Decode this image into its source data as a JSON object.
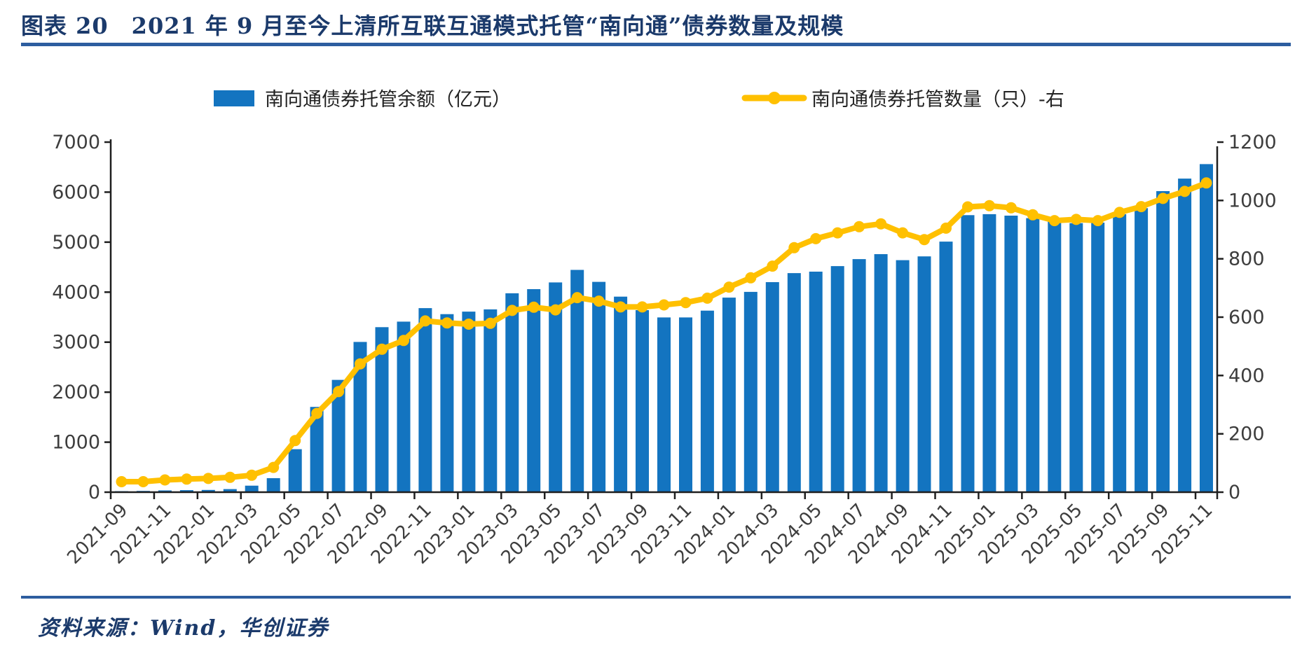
{
  "header": {
    "title": "图表 20　2021 年 9 月至今上清所互联互通模式托管“南向通”债券数量及规模"
  },
  "footer": {
    "source": "资料来源：Wind，华创证券"
  },
  "colors": {
    "bar_blue": "#1374C0",
    "line_yellow": "#FFC000",
    "title_navy": "#1b3a6b",
    "rule_navy": "#2d5d9f",
    "axis_line": "#1f1f1f",
    "axis_text": "#3d3d3d"
  },
  "chart_data": {
    "type": "bar",
    "subtype": "bar-line-combo-dual-axis",
    "title": "",
    "xlabel": "",
    "ylabel_left": "亿元",
    "ylabel_right": "只",
    "grid": false,
    "legend_position": "top",
    "label_every": 2,
    "left_axis": {
      "min": 0,
      "max": 7000,
      "step": 1000
    },
    "right_axis": {
      "min": 0,
      "max": 1200,
      "step": 200
    },
    "categories": [
      "2021-09",
      "2021-10",
      "2021-11",
      "2021-12",
      "2022-01",
      "2022-02",
      "2022-03",
      "2022-04",
      "2022-05",
      "2022-06",
      "2022-07",
      "2022-08",
      "2022-09",
      "2022-10",
      "2022-11",
      "2022-12",
      "2023-01",
      "2023-02",
      "2023-03",
      "2023-04",
      "2023-05",
      "2023-06",
      "2023-07",
      "2023-08",
      "2023-09",
      "2023-10",
      "2023-11",
      "2023-12",
      "2024-01",
      "2024-02",
      "2024-03",
      "2024-04",
      "2024-05",
      "2024-06",
      "2024-07",
      "2024-08",
      "2024-09",
      "2024-10",
      "2024-11",
      "2024-12",
      "2025-01",
      "2025-02",
      "2025-03",
      "2025-04",
      "2025-05",
      "2025-06",
      "2025-07",
      "2025-08",
      "2025-09",
      "2025-10",
      "2025-11"
    ],
    "series": [
      {
        "name": "南向通债券托管余额（亿元）",
        "type": "bar",
        "axis": "left",
        "color": "#1374C0",
        "values": [
          20,
          25,
          35,
          40,
          45,
          62,
          130,
          280,
          860,
          1705,
          2245,
          3005,
          3300,
          3410,
          3680,
          3560,
          3610,
          3655,
          3978,
          4060,
          4195,
          4445,
          4205,
          3910,
          3640,
          3495,
          3495,
          3630,
          3890,
          4005,
          4200,
          4380,
          4410,
          4520,
          4660,
          4760,
          4640,
          4715,
          5010,
          5540,
          5560,
          5530,
          5480,
          5410,
          5380,
          5390,
          5560,
          5680,
          6020,
          6270,
          6560
        ]
      },
      {
        "name": "南向通债券托管数量（只）-右",
        "type": "line",
        "axis": "right",
        "color": "#FFC000",
        "values": [
          36,
          36,
          42,
          45,
          47,
          51,
          58,
          85,
          177,
          270,
          345,
          440,
          490,
          520,
          587,
          580,
          576,
          579,
          623,
          634,
          625,
          667,
          655,
          635,
          635,
          642,
          650,
          665,
          703,
          735,
          775,
          838,
          869,
          889,
          910,
          920,
          889,
          866,
          905,
          978,
          982,
          975,
          951,
          931,
          935,
          931,
          959,
          979,
          1007,
          1031,
          1060
        ]
      }
    ]
  }
}
